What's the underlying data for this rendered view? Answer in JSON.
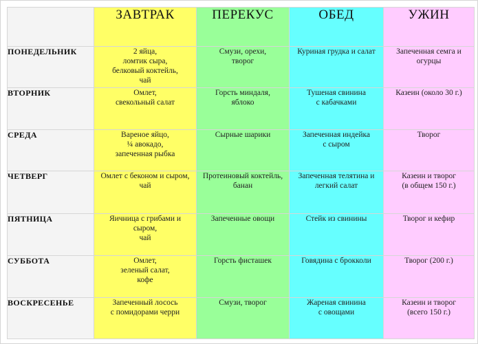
{
  "columns": [
    "ЗАВТРАК",
    "ПЕРЕКУС",
    "ОБЕД",
    "УЖИН"
  ],
  "column_colors": {
    "breakfast": "#ffff66",
    "snack": "#99ff99",
    "lunch": "#66ffff",
    "dinner": "#ffccff",
    "day_column": "#f4f4f4"
  },
  "rows": [
    {
      "day": "ПОНЕДЕЛЬНИК",
      "breakfast": "2 яйца,\nломтик сыра,\nбелковый коктейль,\nчай",
      "snack": "Смузи, орехи,\nтворог",
      "lunch": "Куриная грудка и салат",
      "dinner": "Запеченная семга и\nогурцы"
    },
    {
      "day": "ВТОРНИК",
      "breakfast": "Омлет,\nсвекольный салат",
      "snack": "Горсть миндаля,\nяблоко",
      "lunch": "Тушеная свинина\nс кабачками",
      "dinner": "Казеин (около 30 г.)"
    },
    {
      "day": "СРЕДА",
      "breakfast": "Вареное яйцо,\n¼ авокадо,\nзапеченная рыбка",
      "snack": "Сырные шарики",
      "lunch": "Запеченная индейка\nс сыром",
      "dinner": "Творог"
    },
    {
      "day": "ЧЕТВЕРГ",
      "breakfast": "Омлет с беконом и сыром,\nчай",
      "snack": "Протеиновый коктейль,\nбанан",
      "lunch": "Запеченная телятина и\nлегкий салат",
      "dinner": "Казеин и творог\n(в общем 150 г.)"
    },
    {
      "day": "ПЯТНИЦА",
      "breakfast": "Яичница с грибами и\nсыром,\nчай",
      "snack": "Запеченные овощи",
      "lunch": "Стейк из свинины",
      "dinner": "Творог и кефир"
    },
    {
      "day": "СУББОТА",
      "breakfast": "Омлет,\nзеленый салат,\nкофе",
      "snack": "Горсть фисташек",
      "lunch": "Говядина с брокколи",
      "dinner": "Творог (200 г.)"
    },
    {
      "day": "ВОСКРЕСЕНЬЕ",
      "breakfast": "Запеченный лосось\nс помидорами черри",
      "snack": "Смузи, творог",
      "lunch": "Жареная свинина\nс овощами",
      "dinner": "Казеин и творог\n(всего 150 г.)"
    }
  ]
}
